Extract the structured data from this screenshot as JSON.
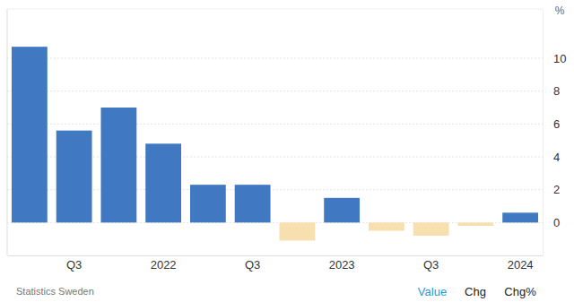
{
  "chart_data": {
    "type": "bar",
    "ylabel": "%",
    "source": "Statistics Sweden",
    "buttons": [
      "Value",
      "Chg",
      "Chg%"
    ],
    "categories": [
      null,
      "Q3",
      null,
      "2022",
      null,
      "Q3",
      null,
      "2023",
      null,
      "Q3",
      null,
      "2024"
    ],
    "values": [
      10.7,
      5.6,
      7.0,
      4.8,
      2.3,
      2.3,
      -1.1,
      1.5,
      -0.5,
      -0.8,
      -0.2,
      0.6
    ],
    "colors": [
      "#4079c2",
      "#4079c2",
      "#4079c2",
      "#4079c2",
      "#4079c2",
      "#4079c2",
      "#f8dfb0",
      "#4079c2",
      "#f8dfb0",
      "#f8dfb0",
      "#f8dfb0",
      "#4079c2"
    ],
    "ylim": [
      -2,
      13
    ],
    "yticks": [
      0,
      2,
      4,
      6,
      8,
      10
    ],
    "grid": true
  }
}
